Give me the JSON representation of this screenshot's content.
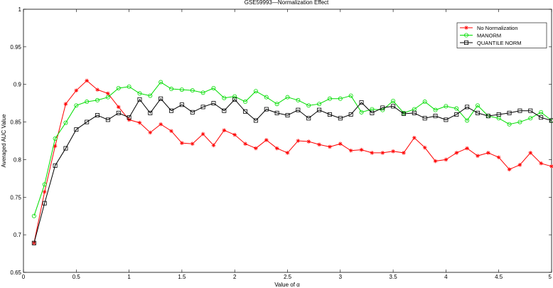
{
  "chart_data": {
    "type": "line",
    "title": "GSE59993—Normalization Effect",
    "xlabel": "Value of α",
    "ylabel": "Averaged AUC Value",
    "xlim": [
      0,
      5
    ],
    "ylim": [
      0.65,
      1
    ],
    "x_ticks": [
      0,
      0.5,
      1,
      1.5,
      2,
      2.5,
      3,
      3.5,
      4,
      4.5,
      5
    ],
    "x_tick_labels": [
      "0",
      "0.5",
      "1",
      "1.5",
      "2",
      "2.5",
      "3",
      "3.5",
      "4",
      "4.5",
      "5"
    ],
    "y_ticks": [
      0.65,
      0.7,
      0.75,
      0.8,
      0.85,
      0.9,
      0.95,
      1
    ],
    "y_tick_labels": [
      "0.65",
      "0.7",
      "0.75",
      "0.8",
      "0.85",
      "0.9",
      "0.95",
      "1"
    ],
    "grid": false,
    "legend_position": "top-right",
    "x": [
      0.1,
      0.2,
      0.3,
      0.4,
      0.5,
      0.6,
      0.7,
      0.8,
      0.9,
      1.0,
      1.1,
      1.2,
      1.3,
      1.4,
      1.5,
      1.6,
      1.7,
      1.8,
      1.9,
      2.0,
      2.1,
      2.2,
      2.3,
      2.4,
      2.5,
      2.6,
      2.7,
      2.8,
      2.9,
      3.0,
      3.1,
      3.2,
      3.3,
      3.4,
      3.5,
      3.6,
      3.7,
      3.8,
      3.9,
      4.0,
      4.1,
      4.2,
      4.3,
      4.4,
      4.5,
      4.6,
      4.7,
      4.8,
      4.9,
      5.0
    ],
    "series": [
      {
        "name": "No Normalization",
        "color": "#ff0000",
        "marker": "star",
        "values": [
          0.689,
          0.757,
          0.818,
          0.874,
          0.892,
          0.905,
          0.893,
          0.888,
          0.87,
          0.853,
          0.849,
          0.836,
          0.847,
          0.838,
          0.822,
          0.821,
          0.834,
          0.819,
          0.839,
          0.833,
          0.821,
          0.815,
          0.826,
          0.815,
          0.809,
          0.825,
          0.824,
          0.82,
          0.817,
          0.821,
          0.812,
          0.813,
          0.809,
          0.809,
          0.811,
          0.809,
          0.829,
          0.816,
          0.798,
          0.8,
          0.809,
          0.815,
          0.805,
          0.809,
          0.803,
          0.787,
          0.793,
          0.809,
          0.795,
          0.791
        ]
      },
      {
        "name": "MANORM",
        "color": "#00dd00",
        "marker": "circle",
        "values": [
          0.725,
          0.767,
          0.828,
          0.849,
          0.872,
          0.877,
          0.879,
          0.883,
          0.895,
          0.897,
          0.888,
          0.885,
          0.903,
          0.894,
          0.893,
          0.892,
          0.889,
          0.895,
          0.882,
          0.884,
          0.877,
          0.891,
          0.883,
          0.874,
          0.883,
          0.879,
          0.872,
          0.874,
          0.881,
          0.881,
          0.885,
          0.863,
          0.867,
          0.866,
          0.878,
          0.862,
          0.867,
          0.877,
          0.866,
          0.871,
          0.868,
          0.852,
          0.872,
          0.858,
          0.855,
          0.847,
          0.85,
          0.855,
          0.863,
          0.852
        ]
      },
      {
        "name": "QUANTILE NORM",
        "color": "#000000",
        "marker": "square",
        "values": [
          0.689,
          0.742,
          0.792,
          0.815,
          0.84,
          0.85,
          0.859,
          0.853,
          0.862,
          0.856,
          0.88,
          0.862,
          0.881,
          0.865,
          0.873,
          0.863,
          0.87,
          0.875,
          0.865,
          0.88,
          0.864,
          0.852,
          0.867,
          0.862,
          0.859,
          0.866,
          0.855,
          0.866,
          0.86,
          0.855,
          0.86,
          0.876,
          0.862,
          0.869,
          0.871,
          0.861,
          0.862,
          0.855,
          0.858,
          0.853,
          0.86,
          0.87,
          0.862,
          0.858,
          0.86,
          0.862,
          0.865,
          0.865,
          0.856,
          0.852
        ]
      }
    ]
  }
}
